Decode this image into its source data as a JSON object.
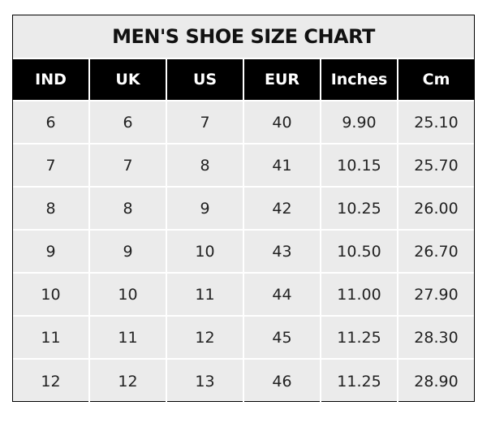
{
  "title": "MEN'S SHOE SIZE CHART",
  "headers": [
    "IND",
    "UK",
    "US",
    "EUR",
    "Inches",
    "Cm"
  ],
  "rows": [
    [
      "6",
      "6",
      "7",
      "40",
      "9.90",
      "25.10"
    ],
    [
      "7",
      "7",
      "8",
      "41",
      "10.15",
      "25.70"
    ],
    [
      "8",
      "8",
      "9",
      "42",
      "10.25",
      "26.00"
    ],
    [
      "9",
      "9",
      "10",
      "43",
      "10.50",
      "26.70"
    ],
    [
      "10",
      "10",
      "11",
      "44",
      "11.00",
      "27.90"
    ],
    [
      "11",
      "11",
      "12",
      "45",
      "11.25",
      "28.30"
    ],
    [
      "12",
      "12",
      "13",
      "46",
      "11.25",
      "28.90"
    ]
  ],
  "colors": {
    "header_bg": "#000000",
    "cell_bg": "#ebebeb",
    "grid": "#ffffff"
  }
}
